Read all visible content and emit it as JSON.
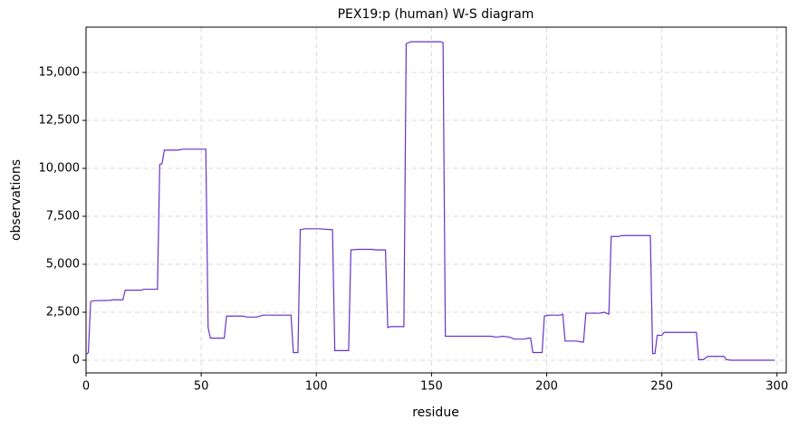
{
  "chart_data": {
    "type": "line",
    "title": "PEX19:p (human) W-S diagram",
    "x_label": "residue",
    "y_label": "observations",
    "x": [
      0,
      1,
      2,
      3,
      10,
      12,
      16,
      17,
      24,
      25,
      31,
      32,
      33,
      34,
      40,
      42,
      52,
      53,
      54,
      60,
      61,
      68,
      70,
      74,
      77,
      89,
      90,
      92,
      93,
      95,
      101,
      107,
      108,
      114,
      115,
      118,
      124,
      126,
      130,
      131,
      132,
      138,
      139,
      141,
      154,
      155,
      156,
      162,
      176,
      178,
      181,
      184,
      186,
      190,
      192,
      193,
      194,
      198,
      199,
      201,
      206,
      207,
      208,
      213,
      215,
      216,
      217,
      223,
      225,
      227,
      228,
      231,
      233,
      245,
      246,
      247,
      248,
      250,
      251,
      259,
      265,
      266,
      268,
      270,
      277,
      278,
      280,
      299
    ],
    "series": [
      {
        "name": "observations",
        "color": "#6633cc",
        "values": [
          300,
          400,
          3050,
          3100,
          3120,
          3150,
          3150,
          3650,
          3650,
          3700,
          3700,
          10200,
          10250,
          10950,
          10950,
          11000,
          11000,
          1700,
          1150,
          1150,
          2300,
          2300,
          2250,
          2250,
          2350,
          2350,
          400,
          400,
          6800,
          6850,
          6850,
          6800,
          500,
          500,
          5750,
          5780,
          5780,
          5750,
          5750,
          1700,
          1750,
          1750,
          16500,
          16600,
          16600,
          16550,
          1250,
          1250,
          1250,
          1200,
          1250,
          1200,
          1100,
          1100,
          1150,
          1150,
          400,
          400,
          2300,
          2350,
          2350,
          2400,
          1000,
          1000,
          950,
          950,
          2450,
          2450,
          2500,
          2400,
          6450,
          6450,
          6500,
          6500,
          350,
          350,
          1300,
          1300,
          1450,
          1450,
          1450,
          30,
          30,
          200,
          200,
          30,
          0,
          0
        ]
      }
    ],
    "xlim": [
      0,
      304
    ],
    "xticks": [
      0,
      50,
      100,
      150,
      200,
      250,
      300
    ],
    "ylim": [
      -660,
      17360
    ],
    "yticks": [
      0,
      {
        "value": 2500,
        "label": "2,500"
      },
      {
        "value": 5000,
        "label": "5,000"
      },
      {
        "value": 7500,
        "label": "7,500"
      },
      {
        "value": 10000,
        "label": "10,000"
      },
      {
        "value": 12500,
        "label": "12,500"
      },
      {
        "value": 15000,
        "label": "15,000"
      }
    ],
    "grid": true
  }
}
